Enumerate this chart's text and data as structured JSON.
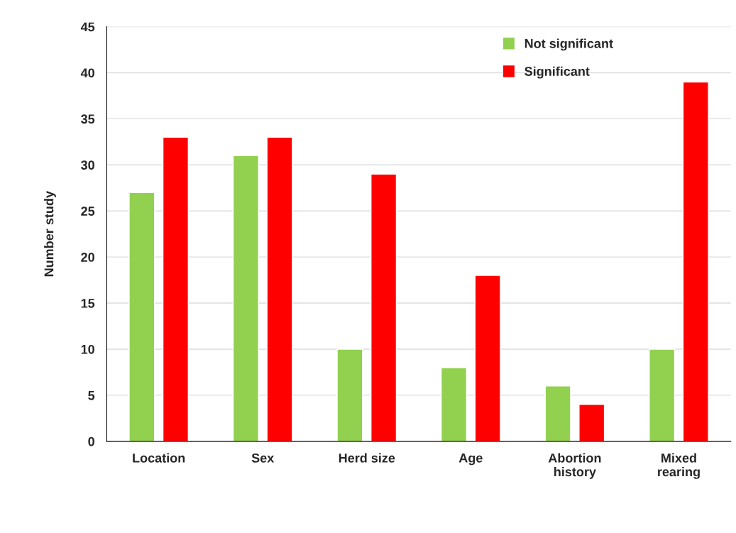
{
  "chart_data": {
    "type": "bar",
    "ylabel": "Number study",
    "categories": [
      "Location",
      "Sex",
      "Herd size",
      "Age",
      "Abortion\nhistory",
      "Mixed\nrearing"
    ],
    "series": [
      {
        "name": "Not significant",
        "color": "#92d050",
        "values": [
          27,
          31,
          10,
          8,
          6,
          10
        ]
      },
      {
        "name": "Significant",
        "color": "#ff0000",
        "values": [
          33,
          33,
          29,
          18,
          4,
          39
        ]
      }
    ],
    "ylim": [
      0,
      45
    ],
    "yticks": [
      0,
      5,
      10,
      15,
      20,
      25,
      30,
      35,
      40,
      45
    ],
    "grid": "y",
    "legend": "top right"
  }
}
